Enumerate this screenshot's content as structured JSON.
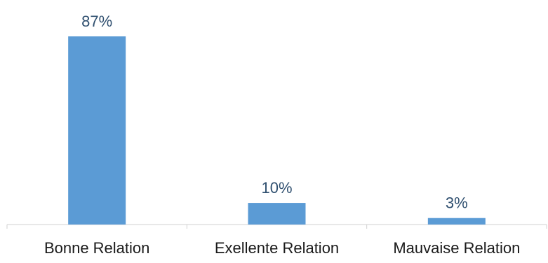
{
  "chart_data": {
    "type": "bar",
    "title": "",
    "xlabel": "",
    "ylabel": "",
    "categories": [
      "Bonne Relation",
      "Exellente Relation",
      "Mauvaise Relation"
    ],
    "values": [
      87,
      10,
      3
    ],
    "data_labels": [
      "87%",
      "10%",
      "3%"
    ],
    "value_unit": "%",
    "ylim": [
      0,
      90
    ],
    "grid": false,
    "legend": "none",
    "colors": {
      "bar": "#5b9bd5",
      "data_label": "#2f4f6f",
      "category_label": "#1a1a1a",
      "axis": "#d0d0d0"
    }
  }
}
